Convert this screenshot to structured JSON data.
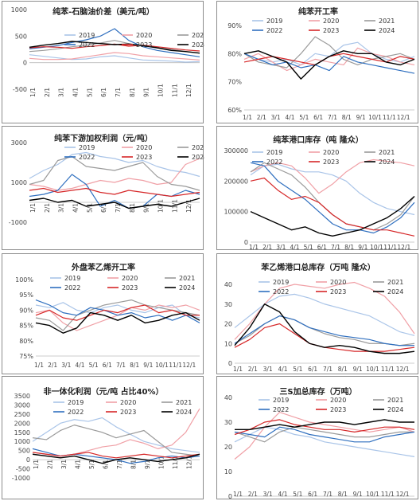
{
  "x_labels": [
    "1/1",
    "2/1",
    "3/1",
    "4/1",
    "5/1",
    "6/1",
    "7/1",
    "8/1",
    "9/1",
    "10/1",
    "11/1",
    "12/1"
  ],
  "series_names": [
    "2019",
    "2020",
    "2021",
    "2022",
    "2023",
    "2024"
  ],
  "series_colors": [
    "#a9c4e8",
    "#f0a0a6",
    "#9a9a9a",
    "#2f6fbf",
    "#d62728",
    "#000000"
  ],
  "chart_data": [
    {
      "type": "line",
      "title": "纯苯-石脑油价差（美元/吨）",
      "y_ticks": [
        "1000",
        "500",
        "0",
        "-500"
      ],
      "ylim": [
        -500,
        1000
      ],
      "series": [
        {
          "name": "2019",
          "values": [
            150,
            120,
            90,
            60,
            70,
            110,
            130,
            90,
            50,
            40,
            30,
            10,
            20
          ]
        },
        {
          "name": "2020",
          "values": [
            80,
            60,
            60,
            70,
            110,
            150,
            190,
            170,
            130,
            110,
            90,
            70,
            50
          ]
        },
        {
          "name": "2021",
          "values": [
            210,
            230,
            260,
            300,
            330,
            370,
            420,
            360,
            320,
            280,
            250,
            210,
            180
          ]
        },
        {
          "name": "2022",
          "values": [
            260,
            290,
            320,
            380,
            430,
            500,
            640,
            420,
            300,
            230,
            190,
            150,
            110
          ]
        },
        {
          "name": "2023",
          "values": [
            280,
            300,
            290,
            270,
            300,
            320,
            350,
            310,
            330,
            300,
            270,
            240,
            220
          ]
        },
        {
          "name": "2024",
          "values": [
            290,
            330,
            360,
            400,
            380,
            360,
            340,
            350,
            320,
            280,
            230,
            210,
            180
          ]
        }
      ]
    },
    {
      "type": "line",
      "title": "纯苯开工率",
      "y_ticks": [
        "90%",
        "80%",
        "70%",
        "60%"
      ],
      "ylim": [
        0.6,
        0.9
      ],
      "series": [
        {
          "name": "2019",
          "values": [
            0.8,
            0.78,
            0.77,
            0.78,
            0.76,
            0.8,
            0.79,
            0.83,
            0.84,
            0.8,
            0.78,
            0.77,
            0.79
          ]
        },
        {
          "name": "2020",
          "values": [
            0.78,
            0.8,
            0.77,
            0.74,
            0.76,
            0.78,
            0.77,
            0.76,
            0.82,
            0.8,
            0.79,
            0.77,
            0.76
          ]
        },
        {
          "name": "2021",
          "values": [
            0.8,
            0.77,
            0.76,
            0.75,
            0.8,
            0.86,
            0.83,
            0.78,
            0.76,
            0.78,
            0.79,
            0.8,
            0.78
          ]
        },
        {
          "name": "2022",
          "values": [
            0.8,
            0.78,
            0.76,
            0.77,
            0.75,
            0.76,
            0.74,
            0.79,
            0.77,
            0.76,
            0.75,
            0.74,
            0.73
          ]
        },
        {
          "name": "2023",
          "values": [
            0.77,
            0.78,
            0.79,
            0.78,
            0.77,
            0.76,
            0.79,
            0.8,
            0.79,
            0.78,
            0.77,
            0.79,
            0.78
          ]
        },
        {
          "name": "2024",
          "values": [
            0.8,
            0.81,
            0.79,
            0.77,
            0.71,
            0.76,
            0.79,
            0.81,
            0.8,
            0.8,
            0.77,
            0.76,
            0.78
          ]
        }
      ]
    },
    {
      "type": "line",
      "title": "纯苯下游加权利润（元/吨）",
      "y_ticks": [
        "3000",
        "1000",
        "-1000"
      ],
      "ylim": [
        -1000,
        3000
      ],
      "series": [
        {
          "name": "2019",
          "values": [
            1200,
            1600,
            1900,
            2400,
            2500,
            2300,
            2200,
            2000,
            2100,
            1800,
            1600,
            1500,
            1300
          ]
        },
        {
          "name": "2020",
          "values": [
            900,
            800,
            600,
            700,
            900,
            1100,
            1000,
            1200,
            1100,
            900,
            1000,
            1900,
            2200
          ]
        },
        {
          "name": "2021",
          "values": [
            900,
            1100,
            2100,
            2300,
            1800,
            1700,
            1600,
            1800,
            2000,
            1300,
            900,
            800,
            600
          ]
        },
        {
          "name": "2022",
          "values": [
            300,
            400,
            600,
            1400,
            900,
            -200,
            100,
            -300,
            -200,
            400,
            300,
            600,
            400
          ]
        },
        {
          "name": "2023",
          "values": [
            600,
            700,
            500,
            600,
            700,
            500,
            400,
            600,
            500,
            400,
            300,
            400,
            500
          ]
        },
        {
          "name": "2024",
          "values": [
            100,
            200,
            0,
            100,
            -200,
            -100,
            0,
            -300,
            -200,
            -100,
            -200,
            0,
            200
          ]
        }
      ]
    },
    {
      "type": "line",
      "title": "纯苯港口库存（吨 隆众）",
      "y_ticks": [
        "300000",
        "200000",
        "100000",
        "0"
      ],
      "ylim": [
        0,
        300000
      ],
      "series": [
        {
          "name": "2019",
          "values": [
            220000,
            250000,
            255000,
            240000,
            230000,
            230000,
            220000,
            200000,
            160000,
            130000,
            110000,
            100000,
            90000
          ]
        },
        {
          "name": "2020",
          "values": [
            230000,
            250000,
            260000,
            250000,
            210000,
            160000,
            190000,
            230000,
            260000,
            270000,
            265000,
            260000,
            250000
          ]
        },
        {
          "name": "2021",
          "values": [
            230000,
            260000,
            240000,
            220000,
            180000,
            130000,
            90000,
            60000,
            50000,
            40000,
            60000,
            90000,
            150000
          ]
        },
        {
          "name": "2022",
          "values": [
            260000,
            250000,
            200000,
            170000,
            140000,
            100000,
            60000,
            40000,
            40000,
            30000,
            50000,
            80000,
            130000
          ]
        },
        {
          "name": "2023",
          "values": [
            200000,
            210000,
            170000,
            140000,
            150000,
            130000,
            90000,
            60000,
            50000,
            40000,
            40000,
            30000,
            20000
          ]
        },
        {
          "name": "2024",
          "values": [
            100000,
            80000,
            60000,
            40000,
            50000,
            30000,
            20000,
            30000,
            40000,
            60000,
            80000,
            110000,
            150000
          ]
        }
      ]
    },
    {
      "type": "line",
      "title": "外盘苯乙烯开工率",
      "y_ticks": [
        "100%",
        "95%",
        "90%",
        "85%",
        "80%",
        "75%"
      ],
      "ylim": [
        0.7,
        1.0
      ],
      "series": [
        {
          "name": "2019",
          "values": [
            0.9,
            0.89,
            0.91,
            0.88,
            0.87,
            0.89,
            0.9,
            0.88,
            0.87,
            0.89,
            0.9,
            0.86,
            0.85
          ]
        },
        {
          "name": "2020",
          "values": [
            0.87,
            0.88,
            0.83,
            0.8,
            0.82,
            0.84,
            0.86,
            0.89,
            0.88,
            0.9,
            0.89,
            0.9,
            0.88
          ]
        },
        {
          "name": "2021",
          "values": [
            0.85,
            0.84,
            0.8,
            0.86,
            0.88,
            0.9,
            0.91,
            0.92,
            0.9,
            0.89,
            0.88,
            0.87,
            0.86
          ]
        },
        {
          "name": "2022",
          "values": [
            0.92,
            0.9,
            0.87,
            0.86,
            0.89,
            0.88,
            0.86,
            0.87,
            0.85,
            0.86,
            0.84,
            0.86,
            0.83
          ]
        },
        {
          "name": "2023",
          "values": [
            0.86,
            0.88,
            0.85,
            0.84,
            0.86,
            0.88,
            0.87,
            0.89,
            0.9,
            0.87,
            0.88,
            0.86,
            0.86
          ]
        },
        {
          "name": "2024",
          "values": [
            0.83,
            0.82,
            0.79,
            0.81,
            0.87,
            0.86,
            0.84,
            0.86,
            0.83,
            0.84,
            0.86,
            0.87,
            0.84
          ]
        }
      ]
    },
    {
      "type": "line",
      "title": "苯乙烯港口总库存（万吨 隆众）",
      "y_ticks": [
        "40",
        "30",
        "20",
        "10",
        "0"
      ],
      "ylim": [
        0,
        40
      ],
      "series": [
        {
          "name": "2019",
          "values": [
            18,
            24,
            30,
            34,
            35,
            33,
            30,
            28,
            26,
            24,
            20,
            16,
            14
          ]
        },
        {
          "name": "2020",
          "values": [
            12,
            20,
            30,
            38,
            40,
            39,
            38,
            40,
            41,
            38,
            34,
            26,
            15
          ]
        },
        {
          "name": "2021",
          "values": [
            10,
            14,
            20,
            24,
            22,
            18,
            15,
            13,
            12,
            10,
            10,
            9,
            10
          ]
        },
        {
          "name": "2022",
          "values": [
            10,
            15,
            20,
            24,
            22,
            18,
            16,
            14,
            13,
            12,
            10,
            9,
            9
          ]
        },
        {
          "name": "2023",
          "values": [
            8,
            12,
            18,
            20,
            15,
            10,
            8,
            7,
            6,
            6,
            6,
            7,
            8
          ]
        },
        {
          "name": "2024",
          "values": [
            9,
            18,
            30,
            26,
            16,
            10,
            8,
            9,
            8,
            6,
            5,
            5,
            6
          ]
        }
      ]
    },
    {
      "type": "line",
      "title": "非一体化利润（元/吨 占比40%）",
      "y_ticks": [
        "3500",
        "3000",
        "2500",
        "2000",
        "1500",
        "1000",
        "500",
        "0",
        "-500",
        "-1000"
      ],
      "ylim": [
        -1000,
        3500
      ],
      "series": [
        {
          "name": "2019",
          "values": [
            1000,
            1500,
            2000,
            2200,
            2100,
            2300,
            1800,
            1400,
            1000,
            800,
            600,
            500,
            400
          ]
        },
        {
          "name": "2020",
          "values": [
            400,
            300,
            200,
            300,
            500,
            700,
            800,
            1100,
            900,
            600,
            800,
            1500,
            2800
          ]
        },
        {
          "name": "2021",
          "values": [
            1200,
            1100,
            1600,
            1900,
            1700,
            1500,
            1200,
            1400,
            1600,
            1000,
            400,
            300,
            200
          ]
        },
        {
          "name": "2022",
          "values": [
            600,
            400,
            200,
            300,
            200,
            100,
            0,
            -200,
            -100,
            100,
            200,
            100,
            200
          ]
        },
        {
          "name": "2023",
          "values": [
            400,
            300,
            200,
            300,
            400,
            200,
            100,
            200,
            300,
            200,
            100,
            200,
            300
          ]
        },
        {
          "name": "2024",
          "values": [
            300,
            200,
            100,
            200,
            0,
            -200,
            0,
            100,
            0,
            -100,
            0,
            100,
            300
          ]
        }
      ]
    },
    {
      "type": "line",
      "title": "三S加总库存（万吨）",
      "y_ticks": [
        "40",
        "30",
        "20",
        "10",
        "0"
      ],
      "ylim": [
        0,
        40
      ],
      "series": [
        {
          "name": "2019",
          "values": [
            22,
            25,
            28,
            27,
            25,
            24,
            22,
            21,
            20,
            19,
            18,
            17,
            16
          ]
        },
        {
          "name": "2020",
          "values": [
            15,
            20,
            28,
            34,
            32,
            30,
            29,
            28,
            27,
            26,
            27,
            28,
            26
          ]
        },
        {
          "name": "2021",
          "values": [
            26,
            24,
            22,
            26,
            28,
            27,
            26,
            25,
            24,
            24,
            25,
            26,
            26
          ]
        },
        {
          "name": "2022",
          "values": [
            26,
            25,
            24,
            28,
            27,
            25,
            24,
            23,
            22,
            22,
            24,
            25,
            26
          ]
        },
        {
          "name": "2023",
          "values": [
            25,
            27,
            30,
            31,
            29,
            28,
            27,
            27,
            26,
            27,
            28,
            28,
            27
          ]
        },
        {
          "name": "2024",
          "values": [
            27,
            27,
            28,
            29,
            28,
            29,
            30,
            30,
            29,
            30,
            31,
            30,
            30
          ]
        }
      ]
    }
  ]
}
